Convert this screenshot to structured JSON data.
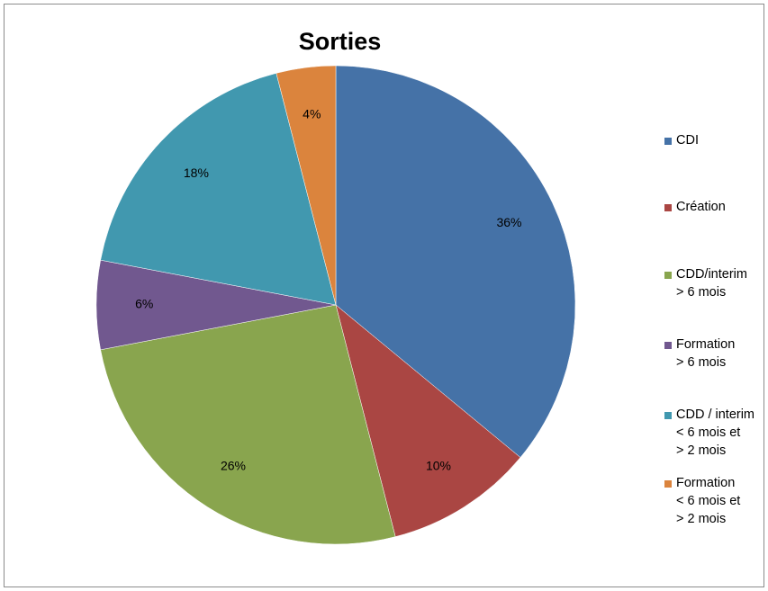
{
  "chart_data": {
    "type": "pie",
    "title": "Sorties",
    "categories": [
      "CDI",
      "Création",
      "CDD/interim\n> 6 mois",
      "Formation\n> 6 mois",
      "CDD / interim\n< 6 mois et\n> 2 mois",
      "Formation\n< 6 mois et\n> 2 mois"
    ],
    "values": [
      36,
      10,
      26,
      6,
      18,
      4
    ],
    "data_labels": [
      "36%",
      "10%",
      "26%",
      "6%",
      "18%",
      "4%"
    ],
    "colors": [
      "#4572A7",
      "#AA4643",
      "#89A54E",
      "#71588F",
      "#4198AF",
      "#DB843D"
    ],
    "legend_position": "right"
  }
}
